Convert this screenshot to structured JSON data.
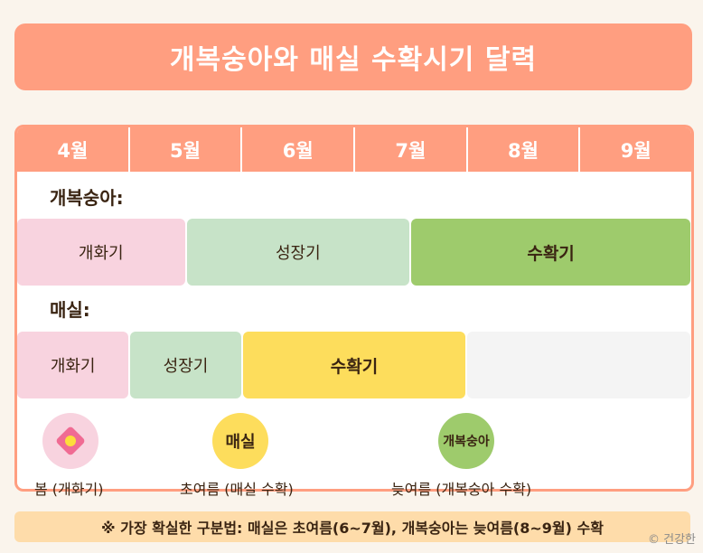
{
  "title": "개복숭아와 매실 수확시기 달력",
  "months": [
    "4월",
    "5월",
    "6월",
    "7월",
    "8월",
    "9월"
  ],
  "rows": [
    {
      "label": "개복숭아:",
      "segments": [
        {
          "label": "개화기",
          "color": "#f8d3df",
          "from_month": 4,
          "to_month": 5.5
        },
        {
          "label": "성장기",
          "color": "#c7e3c8",
          "from_month": 5.5,
          "to_month": 7.5
        },
        {
          "label": "수확기",
          "color": "#9ecb6c",
          "from_month": 7.5,
          "to_month": 10
        }
      ]
    },
    {
      "label": "매실:",
      "segments": [
        {
          "label": "개화기",
          "color": "#f8d3df",
          "from_month": 4,
          "to_month": 5
        },
        {
          "label": "성장기",
          "color": "#c7e3c8",
          "from_month": 5,
          "to_month": 6
        },
        {
          "label": "수확기",
          "color": "#fddd5c",
          "from_month": 6,
          "to_month": 8
        },
        {
          "label": "",
          "color": "#f4f4f4",
          "from_month": 8,
          "to_month": 10
        }
      ]
    }
  ],
  "legend": [
    {
      "icon": "flower-icon",
      "circle_text": "",
      "color": "#f8d3df",
      "label": "봄 (개화기)"
    },
    {
      "icon": "maesil-circle",
      "circle_text": "매실",
      "color": "#fddd5c",
      "label": "초여름 (매실 수확)"
    },
    {
      "icon": "peach-circle",
      "circle_text": "개복숭아",
      "color": "#9ecb6c",
      "label": "늦여름 (개복숭아 수확)"
    }
  ],
  "footer": "※ 가장 확실한 구분법: 매실은 초여름(6~7월), 개복숭아는 늦여름(8~9월) 수확",
  "credit": "© 건강한"
}
